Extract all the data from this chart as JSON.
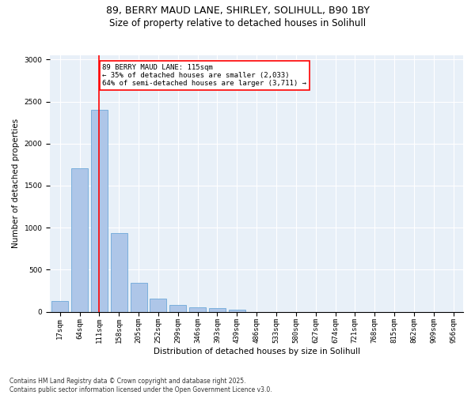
{
  "title_line1": "89, BERRY MAUD LANE, SHIRLEY, SOLIHULL, B90 1BY",
  "title_line2": "Size of property relative to detached houses in Solihull",
  "xlabel": "Distribution of detached houses by size in Solihull",
  "ylabel": "Number of detached properties",
  "categories": [
    "17sqm",
    "64sqm",
    "111sqm",
    "158sqm",
    "205sqm",
    "252sqm",
    "299sqm",
    "346sqm",
    "393sqm",
    "439sqm",
    "486sqm",
    "533sqm",
    "580sqm",
    "627sqm",
    "674sqm",
    "721sqm",
    "768sqm",
    "815sqm",
    "862sqm",
    "909sqm",
    "956sqm"
  ],
  "values": [
    130,
    1710,
    2400,
    940,
    340,
    160,
    80,
    50,
    40,
    25,
    0,
    0,
    0,
    0,
    0,
    0,
    0,
    0,
    0,
    0,
    0
  ],
  "bar_color": "#aec6e8",
  "bar_edge_color": "#5a9fd4",
  "vline_x": 2,
  "vline_color": "red",
  "annotation_text": "89 BERRY MAUD LANE: 115sqm\n← 35% of detached houses are smaller (2,033)\n64% of semi-detached houses are larger (3,711) →",
  "annotation_box_color": "red",
  "annotation_text_color": "black",
  "annotation_box_fill": "white",
  "ylim": [
    0,
    3050
  ],
  "yticks": [
    0,
    500,
    1000,
    1500,
    2000,
    2500,
    3000
  ],
  "background_color": "#e8f0f8",
  "grid_color": "white",
  "footer": "Contains HM Land Registry data © Crown copyright and database right 2025.\nContains public sector information licensed under the Open Government Licence v3.0.",
  "title_fontsize": 9,
  "subtitle_fontsize": 8.5,
  "axis_label_fontsize": 7.5,
  "tick_fontsize": 6.5,
  "annotation_fontsize": 6.5,
  "footer_fontsize": 5.5
}
